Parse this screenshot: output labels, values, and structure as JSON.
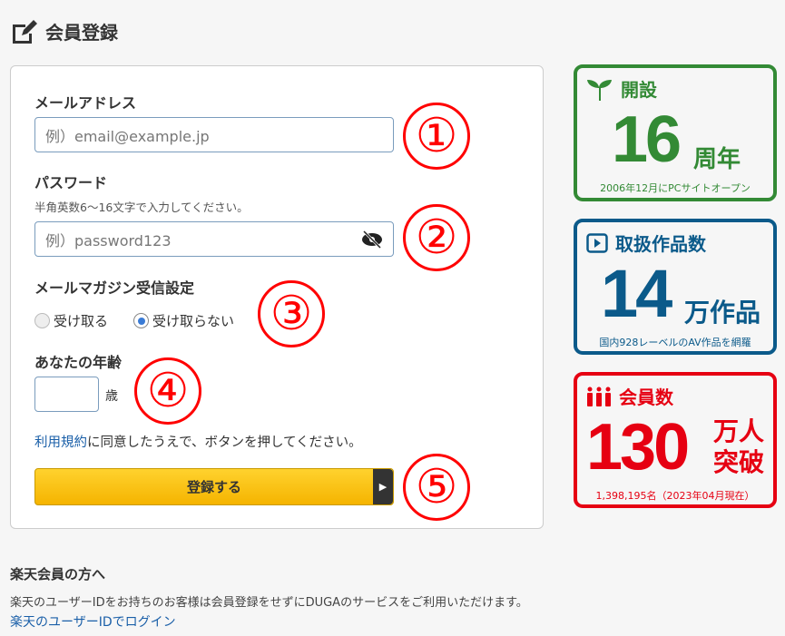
{
  "page": {
    "title": "会員登録",
    "icon": "edit-icon"
  },
  "form": {
    "email": {
      "label": "メールアドレス",
      "placeholder": "例）email@example.jp"
    },
    "password": {
      "label": "パスワード",
      "hint": "半角英数6〜16文字で入力してください。",
      "placeholder": "例）password123",
      "toggle_icon": "eye-slash-icon"
    },
    "newsletter": {
      "label": "メールマガジン受信設定",
      "options": [
        {
          "label": "受け取る",
          "selected": false
        },
        {
          "label": "受け取らない",
          "selected": true
        }
      ]
    },
    "age": {
      "label": "あなたの年齢",
      "value": "",
      "unit": "歳"
    },
    "terms": {
      "link": "利用規約",
      "text": "に同意したうえで、ボタンを押してください。"
    },
    "submit": "登録する"
  },
  "annotations": [
    "①",
    "②",
    "③",
    "④",
    "⑤"
  ],
  "stats": [
    {
      "icon": "sprout-icon",
      "title": "開設",
      "value": "16",
      "unit": "周年",
      "note": "2006年12月にPCサイトオープン",
      "color": "#338a35"
    },
    {
      "icon": "play-icon",
      "title": "取扱作品数",
      "value": "14",
      "unit": "万作品",
      "note": "国内928レーベルのAV作品を網羅",
      "color": "#0b5a8a"
    },
    {
      "icon": "people-icon",
      "title": "会員数",
      "value": "130",
      "unit1": "万人",
      "unit2": "突破",
      "note": "1,398,195名（2023年04月現在）",
      "color": "#e60012"
    }
  ],
  "rakuten": {
    "heading": "楽天会員の方へ",
    "text": "楽天のユーザーIDをお持ちのお客様は会員登録をせずにDUGAのサービスをご利用いただけます。",
    "link": "楽天のユーザーIDでログイン"
  }
}
